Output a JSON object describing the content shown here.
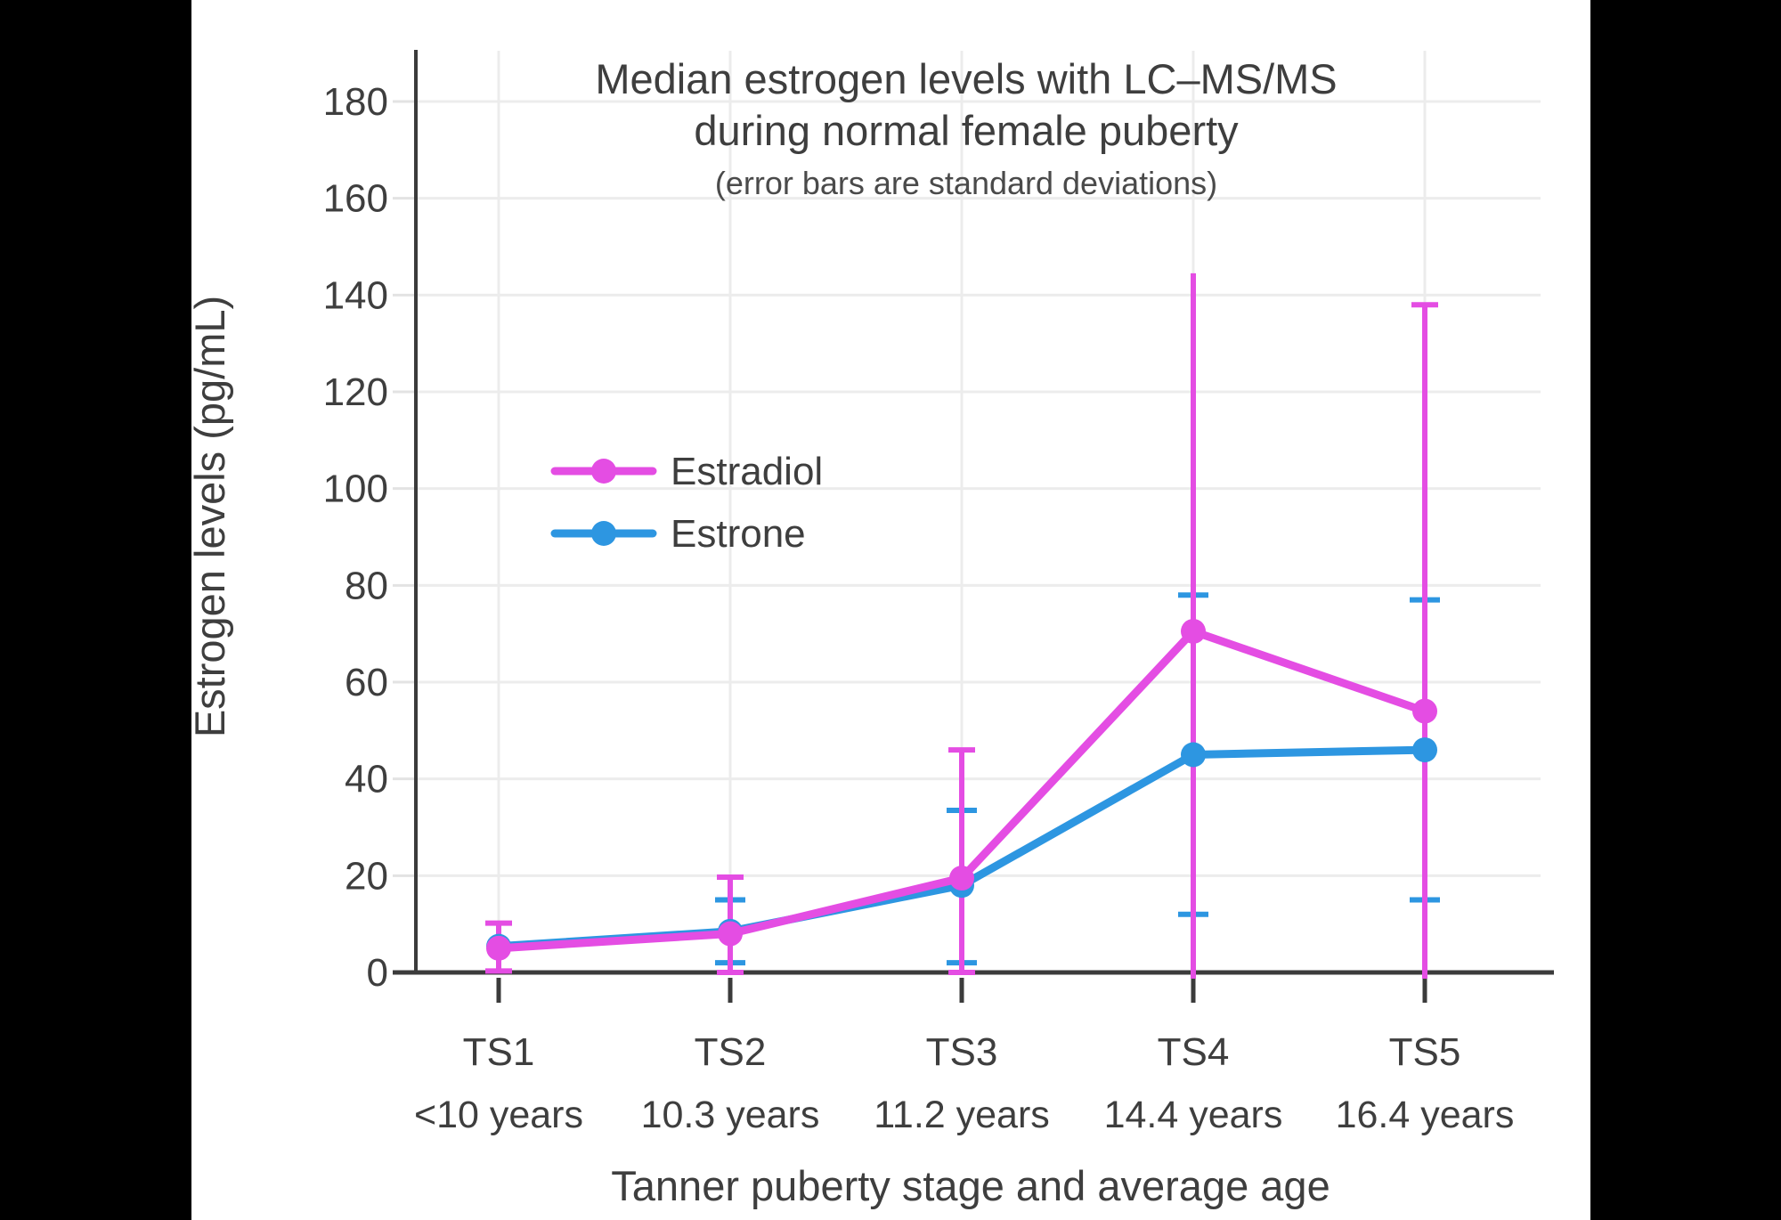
{
  "frame": {
    "background_color": "#000000",
    "canvas_color": "#ffffff",
    "text_color": "#3E3E3E",
    "axis_color": "#3B3B3B",
    "grid_color": "#ECECEC",
    "outer_tick_color": "#E3E3E3"
  },
  "chart_data": {
    "type": "line",
    "title_line1": "Median estrogen levels with LC–MS/MS",
    "title_line2": "during normal female puberty",
    "subtitle": "(error bars are standard deviations)",
    "ylabel": "Estrogen levels (pg/mL)",
    "xlabel": "Tanner puberty stage and average age",
    "categories": [
      "TS1",
      "TS2",
      "TS3",
      "TS4",
      "TS5"
    ],
    "category_sublabels": [
      "<10 years",
      "10.3 years",
      "11.2 years",
      "14.4 years",
      "16.4 years"
    ],
    "y_ticks": [
      0,
      20,
      40,
      60,
      80,
      100,
      120,
      140,
      160,
      180
    ],
    "ylim": [
      0,
      190
    ],
    "grid": true,
    "legend_position": "inside-upper-left",
    "legend_labels": [
      "Estradiol",
      "Estrone"
    ],
    "series": [
      {
        "name": "Estrone",
        "color": "#2D96E1",
        "values": [
          5.4,
          8.5,
          18,
          45,
          46
        ],
        "err_hi": [
          null,
          15,
          33.5,
          78,
          77
        ],
        "err_lo": [
          null,
          2,
          2,
          12,
          15
        ],
        "cap_hi": [
          false,
          true,
          true,
          true,
          true
        ],
        "cap_lo": [
          false,
          true,
          true,
          true,
          true
        ]
      },
      {
        "name": "Estradiol",
        "color": "#E44DE3",
        "values": [
          5,
          8,
          19.5,
          70.5,
          54
        ],
        "err_hi": [
          10.2,
          19.7,
          46,
          144.5,
          138
        ],
        "err_lo": [
          0.3,
          0,
          0,
          -3.5,
          -29
        ],
        "cap_hi": [
          true,
          true,
          true,
          false,
          true
        ],
        "cap_lo": [
          true,
          true,
          true,
          false,
          false
        ]
      }
    ]
  }
}
